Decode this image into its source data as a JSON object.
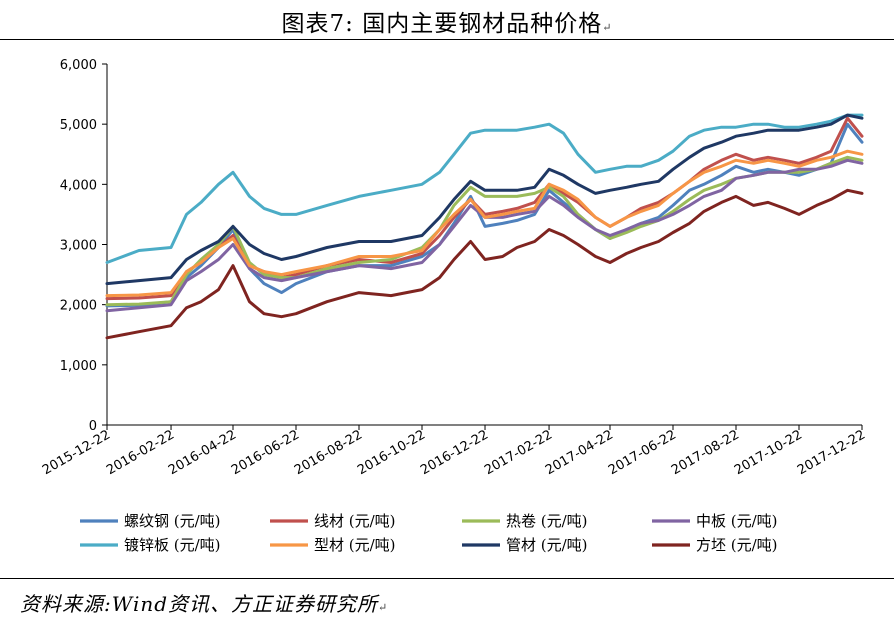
{
  "title": "图表7:  国内主要钢材品种价格",
  "source": "资料来源:Wind资讯、方正证券研究所",
  "return_mark": "↵",
  "chart_data": {
    "type": "line",
    "title": "",
    "xlabel": "",
    "ylabel": "",
    "ylim": [
      0,
      6000
    ],
    "y_ticks": [
      0,
      1000,
      2000,
      3000,
      4000,
      5000,
      6000
    ],
    "y_tick_labels": [
      "0",
      "1,000",
      "2,000",
      "3,000",
      "4,000",
      "5,000",
      "6,000"
    ],
    "x_tick_labels": [
      "2015-12-22",
      "2016-02-22",
      "2016-04-22",
      "2016-06-22",
      "2016-08-22",
      "2016-10-22",
      "2016-12-22",
      "2017-02-22",
      "2017-04-22",
      "2017-06-22",
      "2017-08-22",
      "2017-10-22",
      "2017-12-22"
    ],
    "grid": false,
    "legend_position": "bottom",
    "x": [
      "2015-12-22",
      "2016-01-22",
      "2016-02-22",
      "2016-03-08",
      "2016-03-22",
      "2016-04-08",
      "2016-04-22",
      "2016-05-08",
      "2016-05-22",
      "2016-06-08",
      "2016-06-22",
      "2016-07-22",
      "2016-08-22",
      "2016-09-22",
      "2016-10-22",
      "2016-11-08",
      "2016-11-22",
      "2016-12-08",
      "2016-12-22",
      "2017-01-08",
      "2017-01-22",
      "2017-02-08",
      "2017-02-22",
      "2017-03-08",
      "2017-03-22",
      "2017-04-08",
      "2017-04-22",
      "2017-05-08",
      "2017-05-22",
      "2017-06-08",
      "2017-06-22",
      "2017-07-08",
      "2017-07-22",
      "2017-08-08",
      "2017-08-22",
      "2017-09-08",
      "2017-09-22",
      "2017-10-08",
      "2017-10-22",
      "2017-11-08",
      "2017-11-22",
      "2017-12-08",
      "2017-12-22"
    ],
    "series": [
      {
        "name": "螺纹钢 (元/吨)",
        "color": "#4F81BD",
        "values": [
          1980,
          1990,
          2050,
          2450,
          2650,
          2950,
          3250,
          2600,
          2350,
          2200,
          2350,
          2550,
          2650,
          2650,
          2800,
          3000,
          3350,
          3800,
          3300,
          3350,
          3400,
          3500,
          3900,
          3700,
          3500,
          3250,
          3100,
          3250,
          3350,
          3450,
          3650,
          3900,
          4000,
          4150,
          4300,
          4200,
          4250,
          4200,
          4150,
          4250,
          4350,
          5000,
          4700
        ]
      },
      {
        "name": "线材 (元/吨)",
        "color": "#C0504D",
        "values": [
          2100,
          2110,
          2150,
          2550,
          2700,
          2950,
          3150,
          2650,
          2550,
          2450,
          2500,
          2650,
          2750,
          2700,
          2850,
          3150,
          3450,
          3750,
          3500,
          3550,
          3600,
          3700,
          4000,
          3850,
          3700,
          3450,
          3300,
          3450,
          3600,
          3700,
          3850,
          4050,
          4250,
          4400,
          4500,
          4400,
          4450,
          4400,
          4350,
          4450,
          4550,
          5100,
          4800
        ]
      },
      {
        "name": "热卷 (元/吨)",
        "color": "#9BBB59",
        "values": [
          2000,
          2010,
          2050,
          2500,
          2750,
          3000,
          3300,
          2700,
          2500,
          2450,
          2450,
          2600,
          2700,
          2750,
          2950,
          3250,
          3650,
          3950,
          3800,
          3800,
          3800,
          3850,
          3950,
          3800,
          3500,
          3250,
          3100,
          3200,
          3300,
          3400,
          3550,
          3750,
          3900,
          4000,
          4100,
          4150,
          4200,
          4200,
          4200,
          4250,
          4350,
          4450,
          4400
        ]
      },
      {
        "name": "中板 (元/吨)",
        "color": "#8064A2",
        "values": [
          1900,
          1950,
          2000,
          2400,
          2550,
          2750,
          3000,
          2600,
          2450,
          2400,
          2450,
          2550,
          2650,
          2600,
          2700,
          3000,
          3300,
          3650,
          3450,
          3450,
          3500,
          3550,
          3800,
          3650,
          3450,
          3250,
          3150,
          3250,
          3350,
          3400,
          3500,
          3650,
          3800,
          3900,
          4100,
          4150,
          4200,
          4200,
          4250,
          4250,
          4300,
          4400,
          4350
        ]
      },
      {
        "name": "镀锌板 (元/吨)",
        "color": "#4BACC6",
        "values": [
          2700,
          2900,
          2950,
          3500,
          3700,
          4000,
          4200,
          3800,
          3600,
          3500,
          3500,
          3650,
          3800,
          3900,
          4000,
          4200,
          4500,
          4850,
          4900,
          4900,
          4900,
          4950,
          5000,
          4850,
          4500,
          4200,
          4250,
          4300,
          4300,
          4400,
          4550,
          4800,
          4900,
          4950,
          4950,
          5000,
          5000,
          4950,
          4950,
          5000,
          5050,
          5150,
          5150
        ]
      },
      {
        "name": "型材 (元/吨)",
        "color": "#F79646",
        "values": [
          2150,
          2160,
          2200,
          2550,
          2700,
          2950,
          3100,
          2650,
          2550,
          2500,
          2550,
          2650,
          2800,
          2800,
          2900,
          3250,
          3500,
          3750,
          3450,
          3500,
          3550,
          3600,
          4000,
          3900,
          3750,
          3450,
          3300,
          3450,
          3550,
          3650,
          3850,
          4050,
          4200,
          4300,
          4400,
          4350,
          4400,
          4350,
          4300,
          4400,
          4450,
          4550,
          4500
        ]
      },
      {
        "name": "管材 (元/吨)",
        "color": "#1F3864",
        "values": [
          2350,
          2400,
          2450,
          2750,
          2900,
          3050,
          3300,
          3000,
          2850,
          2750,
          2800,
          2950,
          3050,
          3050,
          3150,
          3450,
          3750,
          4050,
          3900,
          3900,
          3900,
          3950,
          4250,
          4150,
          4000,
          3850,
          3900,
          3950,
          4000,
          4050,
          4250,
          4450,
          4600,
          4700,
          4800,
          4850,
          4900,
          4900,
          4900,
          4950,
          5000,
          5150,
          5100
        ]
      },
      {
        "name": "方坯 (元/吨)",
        "color": "#7F2420",
        "values": [
          1450,
          1550,
          1650,
          1950,
          2050,
          2250,
          2650,
          2050,
          1850,
          1800,
          1850,
          2050,
          2200,
          2150,
          2250,
          2450,
          2750,
          3050,
          2750,
          2800,
          2950,
          3050,
          3250,
          3150,
          3000,
          2800,
          2700,
          2850,
          2950,
          3050,
          3200,
          3350,
          3550,
          3700,
          3800,
          3650,
          3700,
          3600,
          3500,
          3650,
          3750,
          3900,
          3850
        ]
      }
    ]
  }
}
